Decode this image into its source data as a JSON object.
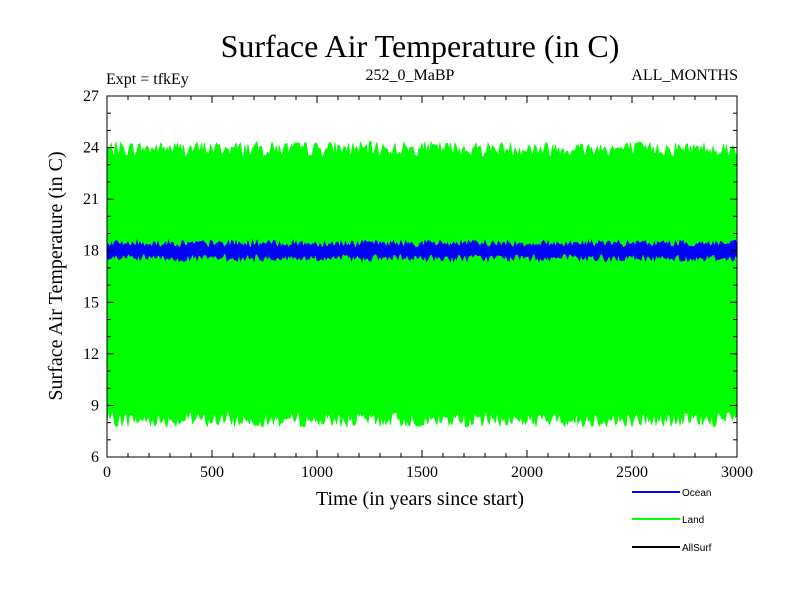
{
  "chart_data": {
    "type": "line",
    "title": "Surface Air Temperature (in C)",
    "subtitle_left": "Expt = tfkEy",
    "subtitle_center": "252_0_MaBP",
    "subtitle_right": "ALL_MONTHS",
    "xlabel": "Time (in years since start)",
    "ylabel": "Surface Air Temperature (in C)",
    "xlim": [
      0,
      3000
    ],
    "ylim": [
      6,
      27
    ],
    "xticks": [
      "0",
      "500",
      "1000",
      "1500",
      "2000",
      "2500",
      "3000"
    ],
    "yticks": [
      "6",
      "9",
      "12",
      "15",
      "18",
      "21",
      "24",
      "27"
    ],
    "grid": false,
    "legend_position": "bottom-right",
    "series": [
      {
        "name": "Land",
        "color": "#00ff00",
        "mean": 16.0,
        "min": 7.6,
        "max": 24.6,
        "typical_low": 8.2,
        "typical_high": 23.9
      },
      {
        "name": "Ocean",
        "color": "#0000ff",
        "mean": 18.0,
        "min": 17.3,
        "max": 18.6,
        "typical_low": 17.6,
        "typical_high": 18.4
      },
      {
        "name": "AllSurf",
        "color": "#000000"
      }
    ],
    "legend_order": [
      "Ocean",
      "Land",
      "AllSurf"
    ]
  }
}
